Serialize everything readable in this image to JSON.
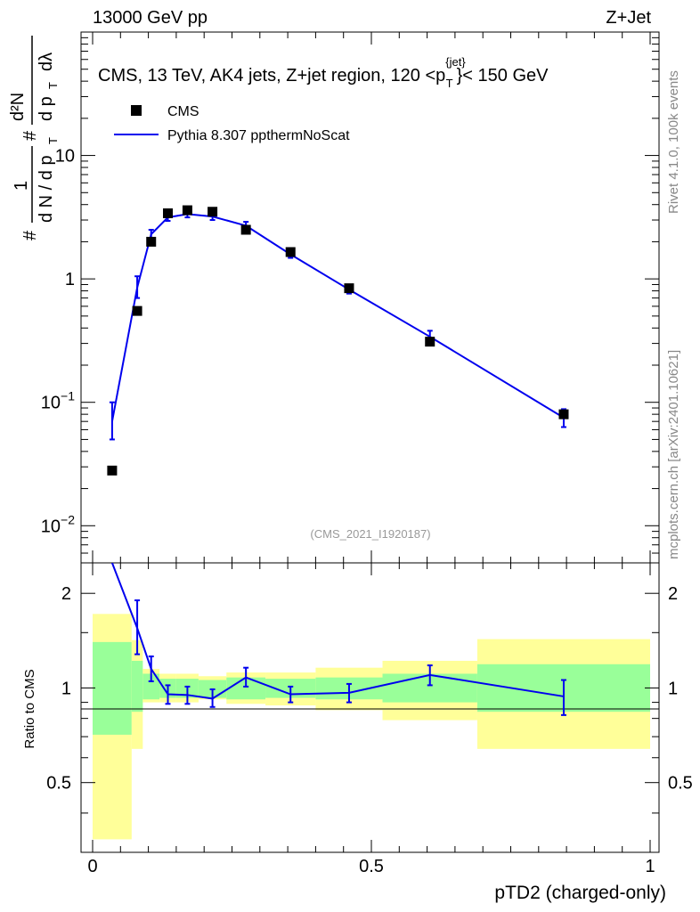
{
  "header": {
    "left": "13000 GeV pp",
    "right": "Z+Jet"
  },
  "side": {
    "rivet": "Rivet 4.1.0,  100k events",
    "mcplots": "mcplots.cern.ch [arXiv:2401.10621]"
  },
  "main_plot": {
    "title_prefix": "CMS, 13 TeV, AK4 jets, Z+jet region, 120 <p",
    "title_sup": "{jet}",
    "title_sub": "T",
    "title_suffix": "}< 150 GeV",
    "analysis_id": "(CMS_2021_I1920187)",
    "ylabel": {
      "hash": "#",
      "one": "1",
      "dN": "d N / d p",
      "T": "T",
      "d2N": "d²N",
      "dpT": "d p",
      "dlambda": "dλ"
    }
  },
  "ratio_plot": {
    "ylabel": "Ratio to CMS"
  },
  "xlabel": "pTD2 (charged-only)",
  "colors": {
    "data": "#000000",
    "mc": "#0000ee",
    "band_inner": "#99ff99",
    "band_outer": "#ffff99"
  },
  "chart_data": [
    {
      "type": "scatter",
      "title": "CMS, 13 TeV, AK4 jets, Z+jet region, 120 <pT{jet}< 150 GeV",
      "xlabel": "pTD2 (charged-only)",
      "ylabel": "1/dN/dpT d2N/dpT dlambda",
      "yscale": "log",
      "xlim": [
        0,
        1
      ],
      "ylim": [
        0.005,
        100
      ],
      "yticks": [
        {
          "v": 0.01,
          "base": "10",
          "exp": "−2"
        },
        {
          "v": 0.1,
          "base": "10",
          "exp": "−1"
        },
        {
          "v": 1,
          "label": "1"
        },
        {
          "v": 10,
          "label": "10"
        }
      ],
      "legend": [
        "CMS",
        "Pythia 8.307 ppthermNoScat"
      ],
      "legend_position": "top-left",
      "series": [
        {
          "name": "CMS",
          "marker": "square",
          "points": [
            {
              "x": 0.035,
              "y": 0.028
            },
            {
              "x": 0.08,
              "y": 0.55
            },
            {
              "x": 0.105,
              "y": 2.0
            },
            {
              "x": 0.135,
              "y": 3.4
            },
            {
              "x": 0.17,
              "y": 3.6
            },
            {
              "x": 0.215,
              "y": 3.5
            },
            {
              "x": 0.275,
              "y": 2.5
            },
            {
              "x": 0.355,
              "y": 1.65
            },
            {
              "x": 0.46,
              "y": 0.84
            },
            {
              "x": 0.605,
              "y": 0.31
            },
            {
              "x": 0.845,
              "y": 0.08
            }
          ]
        },
        {
          "name": "Pythia 8.307 ppthermNoScat",
          "marker": "line",
          "points": [
            {
              "x": 0.035,
              "y": 0.07,
              "lo": 0.05,
              "hi": 0.1
            },
            {
              "x": 0.08,
              "y": 0.85,
              "lo": 0.7,
              "hi": 1.05
            },
            {
              "x": 0.105,
              "y": 2.3,
              "lo": 2.1,
              "hi": 2.5
            },
            {
              "x": 0.135,
              "y": 3.15,
              "lo": 2.95,
              "hi": 3.4
            },
            {
              "x": 0.17,
              "y": 3.35,
              "lo": 3.15,
              "hi": 3.6
            },
            {
              "x": 0.215,
              "y": 3.2,
              "lo": 3.0,
              "hi": 3.45
            },
            {
              "x": 0.275,
              "y": 2.7,
              "lo": 2.5,
              "hi": 2.9
            },
            {
              "x": 0.355,
              "y": 1.58,
              "lo": 1.48,
              "hi": 1.7
            },
            {
              "x": 0.46,
              "y": 0.82,
              "lo": 0.76,
              "hi": 0.88
            },
            {
              "x": 0.605,
              "y": 0.34,
              "lo": 0.3,
              "hi": 0.38
            },
            {
              "x": 0.845,
              "y": 0.075,
              "lo": 0.063,
              "hi": 0.088
            }
          ]
        }
      ]
    },
    {
      "type": "line",
      "ylabel": "Ratio to CMS",
      "xlabel": "pTD2 (charged-only)",
      "xlim": [
        0,
        1
      ],
      "ylim": [
        0.3,
        2.5
      ],
      "yticks": [
        0.5,
        1,
        2
      ],
      "xticks": [
        {
          "v": 0,
          "label": "0"
        },
        {
          "v": 0.5,
          "label": "0.5"
        },
        {
          "v": 1,
          "label": "1"
        }
      ],
      "reference_line": 1,
      "bands": [
        {
          "x0": 0.0,
          "x1": 0.07,
          "inner_lo": 0.71,
          "inner_hi": 1.4,
          "outer_lo": 0.33,
          "outer_hi": 1.72
        },
        {
          "x0": 0.07,
          "x1": 0.09,
          "inner_lo": 0.84,
          "inner_hi": 1.22,
          "outer_lo": 0.64,
          "outer_hi": 1.42
        },
        {
          "x0": 0.09,
          "x1": 0.12,
          "inner_lo": 0.92,
          "inner_hi": 1.11,
          "outer_lo": 0.9,
          "outer_hi": 1.15
        },
        {
          "x0": 0.12,
          "x1": 0.15,
          "inner_lo": 0.93,
          "inner_hi": 1.07,
          "outer_lo": 0.9,
          "outer_hi": 1.11
        },
        {
          "x0": 0.15,
          "x1": 0.19,
          "inner_lo": 0.93,
          "inner_hi": 1.07,
          "outer_lo": 0.9,
          "outer_hi": 1.11
        },
        {
          "x0": 0.19,
          "x1": 0.24,
          "inner_lo": 0.93,
          "inner_hi": 1.06,
          "outer_lo": 0.92,
          "outer_hi": 1.09
        },
        {
          "x0": 0.24,
          "x1": 0.31,
          "inner_lo": 0.92,
          "inner_hi": 1.08,
          "outer_lo": 0.89,
          "outer_hi": 1.12
        },
        {
          "x0": 0.31,
          "x1": 0.4,
          "inner_lo": 0.93,
          "inner_hi": 1.07,
          "outer_lo": 0.88,
          "outer_hi": 1.12
        },
        {
          "x0": 0.4,
          "x1": 0.52,
          "inner_lo": 0.92,
          "inner_hi": 1.08,
          "outer_lo": 0.85,
          "outer_hi": 1.16
        },
        {
          "x0": 0.52,
          "x1": 0.69,
          "inner_lo": 0.9,
          "inner_hi": 1.11,
          "outer_lo": 0.79,
          "outer_hi": 1.22
        },
        {
          "x0": 0.69,
          "x1": 1.0,
          "inner_lo": 0.84,
          "inner_hi": 1.19,
          "outer_lo": 0.64,
          "outer_hi": 1.43
        }
      ],
      "series": [
        {
          "name": "Pythia 8.307 ppthermNoScat",
          "points": [
            {
              "x": 0.035,
              "y": 2.5
            },
            {
              "x": 0.08,
              "y": 1.55,
              "lo": 1.28,
              "hi": 1.9
            },
            {
              "x": 0.105,
              "y": 1.15,
              "lo": 1.05,
              "hi": 1.26
            },
            {
              "x": 0.135,
              "y": 0.955,
              "lo": 0.89,
              "hi": 1.02
            },
            {
              "x": 0.17,
              "y": 0.95,
              "lo": 0.89,
              "hi": 1.01
            },
            {
              "x": 0.215,
              "y": 0.925,
              "lo": 0.87,
              "hi": 0.99
            },
            {
              "x": 0.275,
              "y": 1.08,
              "lo": 1.01,
              "hi": 1.16
            },
            {
              "x": 0.355,
              "y": 0.955,
              "lo": 0.9,
              "hi": 1.01
            },
            {
              "x": 0.46,
              "y": 0.965,
              "lo": 0.9,
              "hi": 1.03
            },
            {
              "x": 0.605,
              "y": 1.1,
              "lo": 1.02,
              "hi": 1.18
            },
            {
              "x": 0.845,
              "y": 0.94,
              "lo": 0.82,
              "hi": 1.06
            }
          ]
        }
      ]
    }
  ]
}
